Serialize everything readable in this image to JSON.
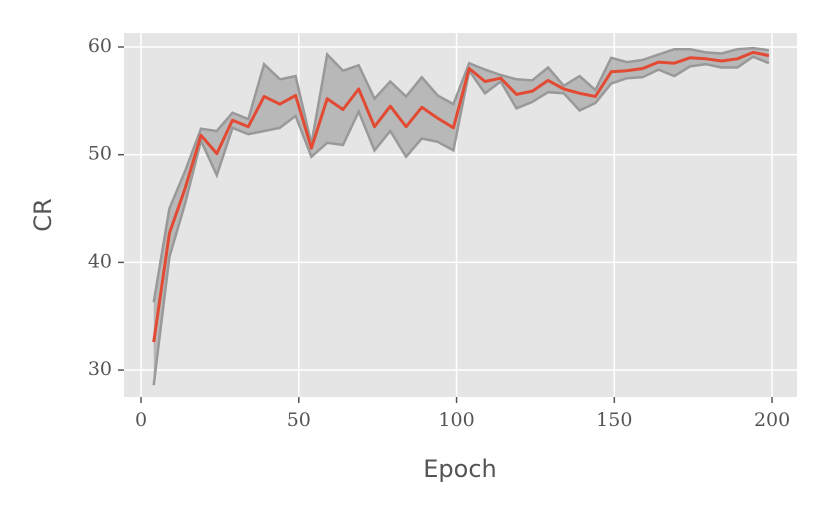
{
  "chart_data": {
    "type": "line",
    "xlabel": "Epoch",
    "ylabel": "CR",
    "x": [
      4,
      9,
      14,
      19,
      24,
      29,
      34,
      39,
      44,
      49,
      54,
      59,
      64,
      69,
      74,
      79,
      84,
      89,
      94,
      99,
      104,
      109,
      114,
      119,
      124,
      129,
      134,
      139,
      144,
      149,
      154,
      159,
      164,
      169,
      174,
      179,
      184,
      189,
      194,
      199
    ],
    "values": [
      32.6,
      42.7,
      46.9,
      51.8,
      50.1,
      53.2,
      52.6,
      55.4,
      54.7,
      55.5,
      50.6,
      55.2,
      54.2,
      56.1,
      52.6,
      54.5,
      52.6,
      54.4,
      53.4,
      52.5,
      58.0,
      56.8,
      57.1,
      55.6,
      55.9,
      56.9,
      56.1,
      55.7,
      55.4,
      57.7,
      57.8,
      58.0,
      58.6,
      58.5,
      59.0,
      58.9,
      58.7,
      58.9,
      59.5,
      59.2
    ],
    "color": "#e24a33",
    "band": {
      "color": "#999999",
      "upper": [
        36.3,
        45.0,
        48.5,
        52.4,
        52.2,
        53.9,
        53.3,
        58.4,
        57.0,
        57.3,
        51.0,
        59.3,
        57.8,
        58.3,
        55.2,
        56.8,
        55.4,
        57.2,
        55.5,
        54.7,
        58.5,
        57.9,
        57.4,
        57.0,
        56.9,
        58.1,
        56.4,
        57.3,
        56.0,
        59.0,
        58.6,
        58.8,
        59.3,
        59.8,
        59.8,
        59.5,
        59.4,
        59.8,
        59.9,
        59.7
      ],
      "lower": [
        28.6,
        40.5,
        45.5,
        51.3,
        48.1,
        52.5,
        51.9,
        52.2,
        52.5,
        53.6,
        49.8,
        51.1,
        50.9,
        54.0,
        50.4,
        52.2,
        49.8,
        51.5,
        51.2,
        50.4,
        57.8,
        55.7,
        56.8,
        54.3,
        54.9,
        55.8,
        55.7,
        54.1,
        54.8,
        56.6,
        57.1,
        57.2,
        57.9,
        57.3,
        58.2,
        58.4,
        58.1,
        58.1,
        59.1,
        58.5
      ]
    },
    "xlim": [
      -5.4,
      207.9
    ],
    "ylim": [
      27.5,
      61.3
    ],
    "xticks": [
      0,
      50,
      100,
      150,
      200
    ],
    "yticks": [
      30,
      40,
      50,
      60
    ],
    "grid": true
  }
}
